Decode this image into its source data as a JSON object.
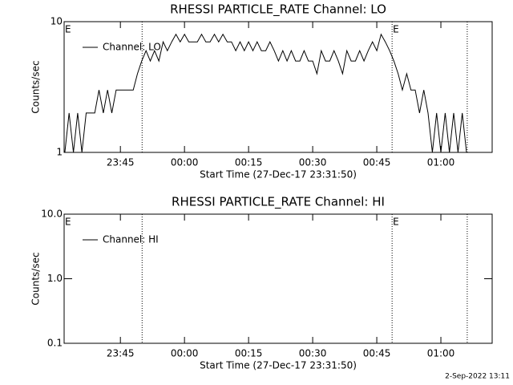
{
  "chart_data": [
    {
      "type": "line",
      "title": "RHESSI PARTICLE_RATE Channel: LO",
      "xlabel": "Start Time (27-Dec-17 23:31:50)",
      "ylabel": "Counts/sec",
      "log_y": true,
      "ylim": [
        1,
        10
      ],
      "yticks": [
        1,
        10
      ],
      "xlim": [
        "23:31:50",
        "01:12:00"
      ],
      "xticks": [
        "23:45",
        "00:00",
        "00:15",
        "00:30",
        "00:45",
        "01:00"
      ],
      "markers": [
        "23:50:05",
        "00:48:35",
        "01:06:10"
      ],
      "annotations": [
        {
          "text": "E",
          "x": "23:31:50"
        },
        {
          "text": "E",
          "x": "00:48:35"
        }
      ],
      "x": [
        "23:32",
        "23:33",
        "23:34",
        "23:35",
        "23:36",
        "23:37",
        "23:38",
        "23:39",
        "23:40",
        "23:41",
        "23:42",
        "23:43",
        "23:44",
        "23:45",
        "23:46",
        "23:47",
        "23:48",
        "23:49",
        "23:50",
        "23:51",
        "23:52",
        "23:53",
        "23:54",
        "23:55",
        "23:56",
        "23:57",
        "23:58",
        "23:59",
        "00:00",
        "00:01",
        "00:02",
        "00:03",
        "00:04",
        "00:05",
        "00:06",
        "00:07",
        "00:08",
        "00:09",
        "00:10",
        "00:11",
        "00:12",
        "00:13",
        "00:14",
        "00:15",
        "00:16",
        "00:17",
        "00:18",
        "00:19",
        "00:20",
        "00:21",
        "00:22",
        "00:23",
        "00:24",
        "00:25",
        "00:26",
        "00:27",
        "00:28",
        "00:29",
        "00:30",
        "00:31",
        "00:32",
        "00:33",
        "00:34",
        "00:35",
        "00:36",
        "00:37",
        "00:38",
        "00:39",
        "00:40",
        "00:41",
        "00:42",
        "00:43",
        "00:44",
        "00:45",
        "00:46",
        "00:47",
        "00:48",
        "00:49",
        "00:50",
        "00:51",
        "00:52",
        "00:53",
        "00:54",
        "00:55",
        "00:56",
        "00:57",
        "00:58",
        "00:59",
        "01:00",
        "01:01",
        "01:02",
        "01:03",
        "01:04",
        "01:05",
        "01:06"
      ],
      "series": [
        {
          "name": "Channel: LO",
          "color": "#000000",
          "values": [
            1,
            2,
            1,
            2,
            1,
            2,
            2,
            2,
            3,
            2,
            3,
            2,
            3,
            3,
            3,
            3,
            3,
            4,
            5,
            6,
            5,
            6,
            5,
            7,
            6,
            7,
            8,
            7,
            8,
            7,
            7,
            7,
            8,
            7,
            7,
            8,
            7,
            8,
            7,
            7,
            6,
            7,
            6,
            7,
            6,
            7,
            6,
            6,
            7,
            6,
            5,
            6,
            5,
            6,
            5,
            5,
            6,
            5,
            5,
            4,
            6,
            5,
            5,
            6,
            5,
            4,
            6,
            5,
            5,
            6,
            5,
            6,
            7,
            6,
            8,
            7,
            6,
            5,
            4,
            3,
            4,
            3,
            3,
            2,
            3,
            2,
            1,
            2,
            1,
            2,
            1,
            2,
            1,
            2,
            1
          ]
        }
      ]
    },
    {
      "type": "line",
      "title": "RHESSI PARTICLE_RATE Channel: HI",
      "xlabel": "Start Time (27-Dec-17 23:31:50)",
      "ylabel": "Counts/sec",
      "log_y": true,
      "ylim": [
        0.1,
        10
      ],
      "yticks": [
        {
          "value": 0.1,
          "label": "0.1"
        },
        {
          "value": 1,
          "label": "1.0"
        },
        {
          "value": 10,
          "label": "10.0"
        }
      ],
      "xlim": [
        "23:31:50",
        "01:12:00"
      ],
      "xticks": [
        "23:45",
        "00:00",
        "00:15",
        "00:30",
        "00:45",
        "01:00"
      ],
      "markers": [
        "23:50:05",
        "00:48:35",
        "01:06:10"
      ],
      "annotations": [
        {
          "text": "E",
          "x": "23:31:50"
        },
        {
          "text": "E",
          "x": "00:48:35"
        }
      ],
      "x": [],
      "series": [
        {
          "name": "Channel: HI",
          "color": "#000000",
          "values": []
        }
      ]
    }
  ],
  "footer": "2-Sep-2022 13:11"
}
